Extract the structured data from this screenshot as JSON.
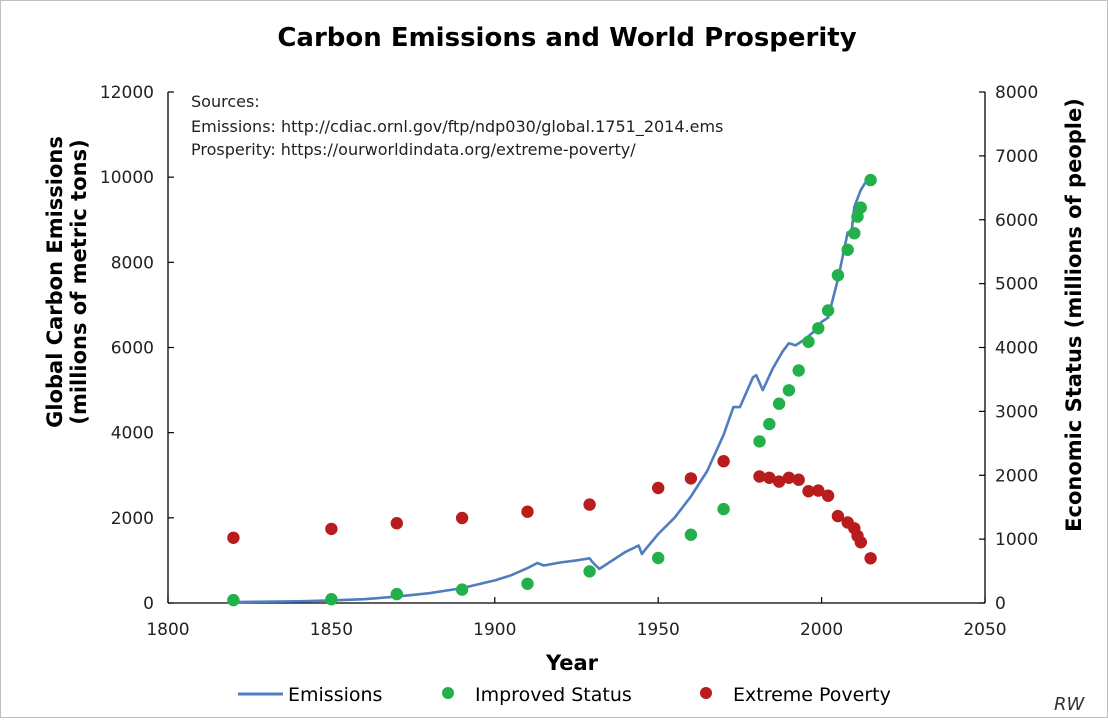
{
  "chart_data": {
    "type": "line",
    "title": "Carbon Emissions and World Prosperity",
    "xlabel": "Year",
    "ylabel_left": "Global Carbon Emissions\n(millions of metric tons)",
    "ylabel_left_lines": [
      "Global Carbon Emissions",
      "(millions of metric tons)"
    ],
    "ylabel_right": "Economic Status (millions of people)",
    "xlim": [
      1800,
      2050
    ],
    "ylim_left": [
      0,
      12000
    ],
    "ylim_right": [
      0,
      8000
    ],
    "xticks": [
      1800,
      1850,
      1900,
      1950,
      2000,
      2050
    ],
    "yticks_left": [
      0,
      2000,
      4000,
      6000,
      8000,
      10000,
      12000
    ],
    "yticks_right": [
      0,
      1000,
      2000,
      3000,
      4000,
      5000,
      6000,
      7000,
      8000
    ],
    "sources_lines": [
      "Sources:",
      "Emissions: http://cdiac.ornl.gov/ftp/ndp030/global.1751_2014.ems",
      "Prosperity: https://ourworldindata.org/extreme-poverty/"
    ],
    "legend": [
      "Emissions",
      "Improved Status",
      "Extreme Poverty"
    ],
    "legend_position": "bottom",
    "signature": "RW",
    "colors": {
      "emissions": "#4f7dbd",
      "improved": "#22b04b",
      "poverty": "#b81c1c"
    },
    "series": [
      {
        "name": "Emissions",
        "kind": "line",
        "axis": "left",
        "x": [
          1820,
          1830,
          1840,
          1850,
          1860,
          1870,
          1880,
          1890,
          1900,
          1905,
          1910,
          1913,
          1915,
          1920,
          1925,
          1929,
          1930,
          1932,
          1935,
          1940,
          1944,
          1945,
          1946,
          1950,
          1955,
          1960,
          1965,
          1970,
          1973,
          1975,
          1979,
          1980,
          1982,
          1985,
          1988,
          1990,
          1992,
          1995,
          1998,
          2000,
          2002,
          2005,
          2008,
          2009,
          2010,
          2012,
          2014
        ],
        "y": [
          20,
          30,
          40,
          60,
          90,
          150,
          230,
          350,
          530,
          650,
          820,
          940,
          880,
          950,
          1000,
          1050,
          950,
          800,
          950,
          1200,
          1350,
          1150,
          1250,
          1620,
          2000,
          2500,
          3100,
          3950,
          4600,
          4600,
          5300,
          5350,
          5000,
          5500,
          5900,
          6100,
          6050,
          6200,
          6400,
          6600,
          6700,
          7600,
          8700,
          8600,
          9300,
          9700,
          9950
        ]
      },
      {
        "name": "Improved Status",
        "kind": "scatter",
        "axis": "right",
        "x": [
          1820,
          1850,
          1870,
          1890,
          1910,
          1929,
          1950,
          1960,
          1970,
          1981,
          1984,
          1987,
          1990,
          1993,
          1996,
          1999,
          2002,
          2005,
          2008,
          2010,
          2011,
          2012,
          2015
        ],
        "y": [
          45,
          60,
          140,
          210,
          300,
          495,
          705,
          1070,
          1470,
          2530,
          2800,
          3120,
          3330,
          3640,
          4090,
          4300,
          4580,
          5130,
          5530,
          5790,
          6050,
          6190,
          6620
        ]
      },
      {
        "name": "Extreme Poverty",
        "kind": "scatter",
        "axis": "right",
        "x": [
          1820,
          1850,
          1870,
          1890,
          1910,
          1929,
          1950,
          1960,
          1970,
          1981,
          1984,
          1987,
          1990,
          1993,
          1996,
          1999,
          2002,
          2005,
          2008,
          2010,
          2011,
          2012,
          2015
        ],
        "y": [
          1020,
          1160,
          1250,
          1330,
          1430,
          1540,
          1800,
          1950,
          2220,
          1980,
          1960,
          1900,
          1960,
          1930,
          1750,
          1760,
          1680,
          1360,
          1260,
          1170,
          1050,
          950,
          700
        ]
      }
    ]
  }
}
